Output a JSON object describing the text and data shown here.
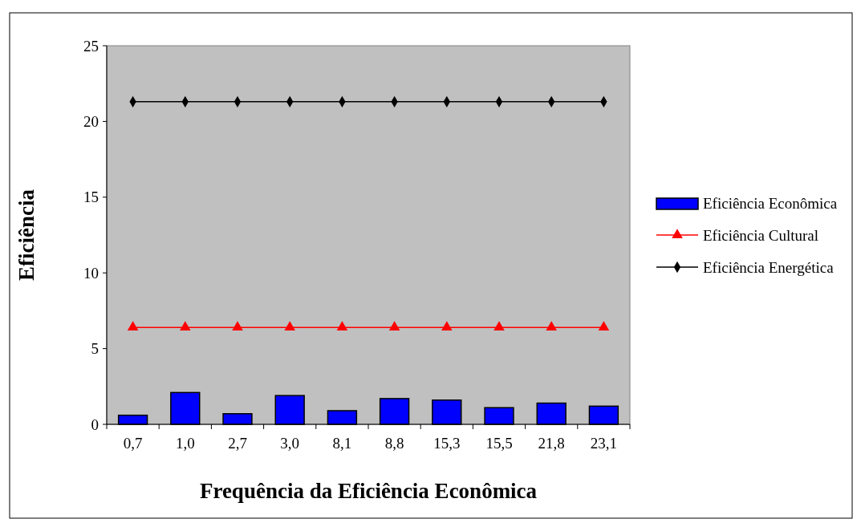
{
  "chart_data": {
    "type": "bar",
    "xlabel": "Frequência da Eficiência Econômica",
    "ylabel": "Eficiência",
    "categories": [
      "0,7",
      "1,0",
      "2,7",
      "3,0",
      "8,1",
      "8,8",
      "15,3",
      "15,5",
      "21,8",
      "23,1"
    ],
    "series": [
      {
        "name": "Eficiência Econômica",
        "color": "#0000ff",
        "values": [
          0.6,
          2.1,
          0.7,
          1.9,
          0.9,
          1.7,
          1.6,
          1.1,
          1.4,
          1.2
        ]
      },
      {
        "name": "Eficiência Cultural",
        "type": "line",
        "color": "#ff0000",
        "marker": "triangle",
        "values": [
          6.4,
          6.4,
          6.4,
          6.4,
          6.4,
          6.4,
          6.4,
          6.4,
          6.4,
          6.4
        ]
      },
      {
        "name": "Eficiência Energética",
        "type": "line",
        "color": "#000000",
        "marker": "diamond",
        "values": [
          21.3,
          21.3,
          21.3,
          21.3,
          21.3,
          21.3,
          21.3,
          21.3,
          21.3,
          21.3
        ]
      }
    ],
    "ylim": [
      0,
      25
    ],
    "yticks": [
      0,
      5,
      10,
      15,
      20,
      25
    ],
    "grid": false,
    "legend": "right"
  }
}
